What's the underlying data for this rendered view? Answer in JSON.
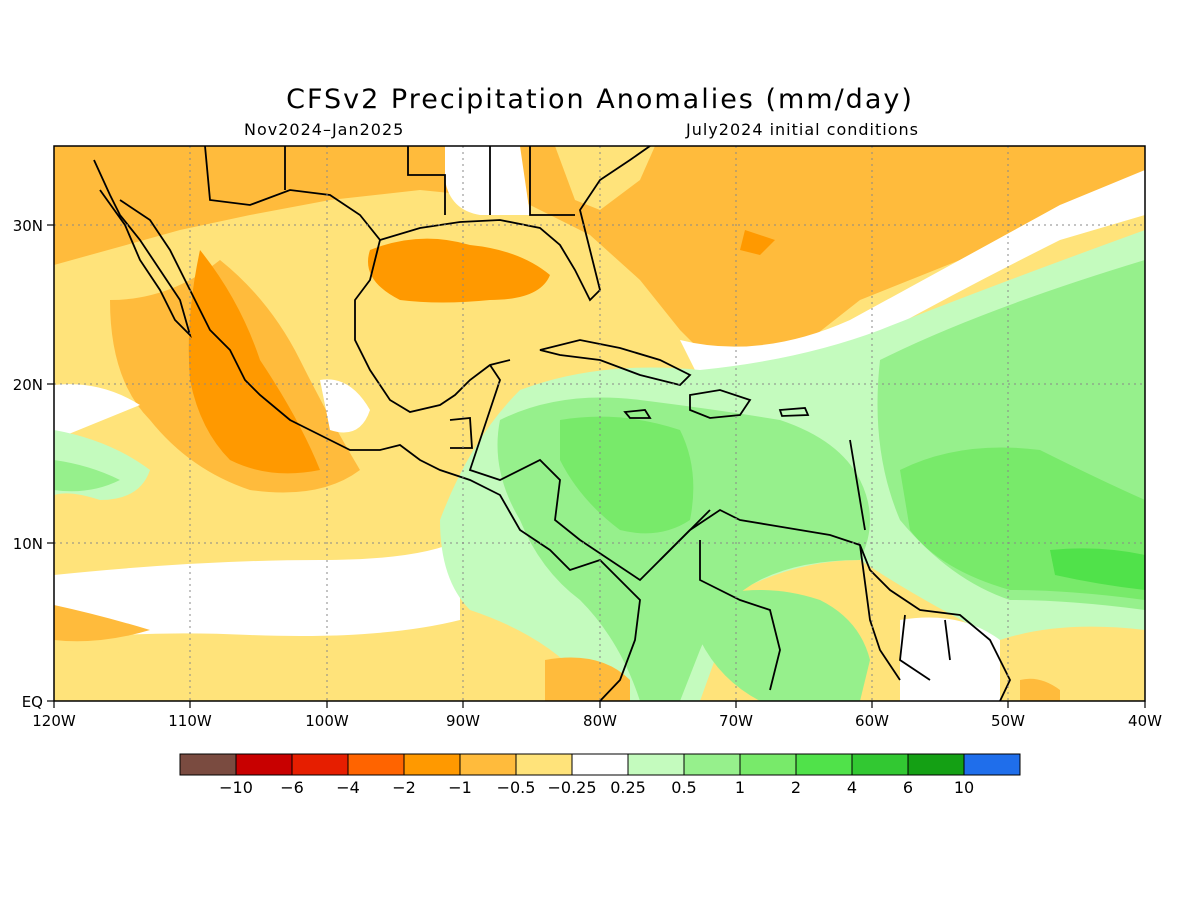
{
  "header": {
    "title": "CFSv2 Precipitation Anomalies (mm/day)",
    "period": "Nov2024–Jan2025",
    "initial_conditions": "July2024 initial conditions"
  },
  "axes": {
    "x_ticks": [
      "120W",
      "110W",
      "100W",
      "90W",
      "80W",
      "70W",
      "60W",
      "50W",
      "40W"
    ],
    "y_ticks": [
      "30N",
      "20N",
      "10N",
      "EQ"
    ]
  },
  "legend": {
    "colors": [
      "#7a4b40",
      "#c80000",
      "#e61e00",
      "#ff6400",
      "#ff9900",
      "#ffbb3c",
      "#ffe37a",
      "#ffffff",
      "#c4fbbe",
      "#96f08c",
      "#78ea6a",
      "#50e24a",
      "#32c832",
      "#14a014",
      "#1f6eeb"
    ],
    "labels": [
      "−10",
      "−6",
      "−4",
      "−2",
      "−1",
      "−0.5",
      "−0.25",
      "0.25",
      "0.5",
      "1",
      "2",
      "4",
      "6",
      "10"
    ]
  }
}
